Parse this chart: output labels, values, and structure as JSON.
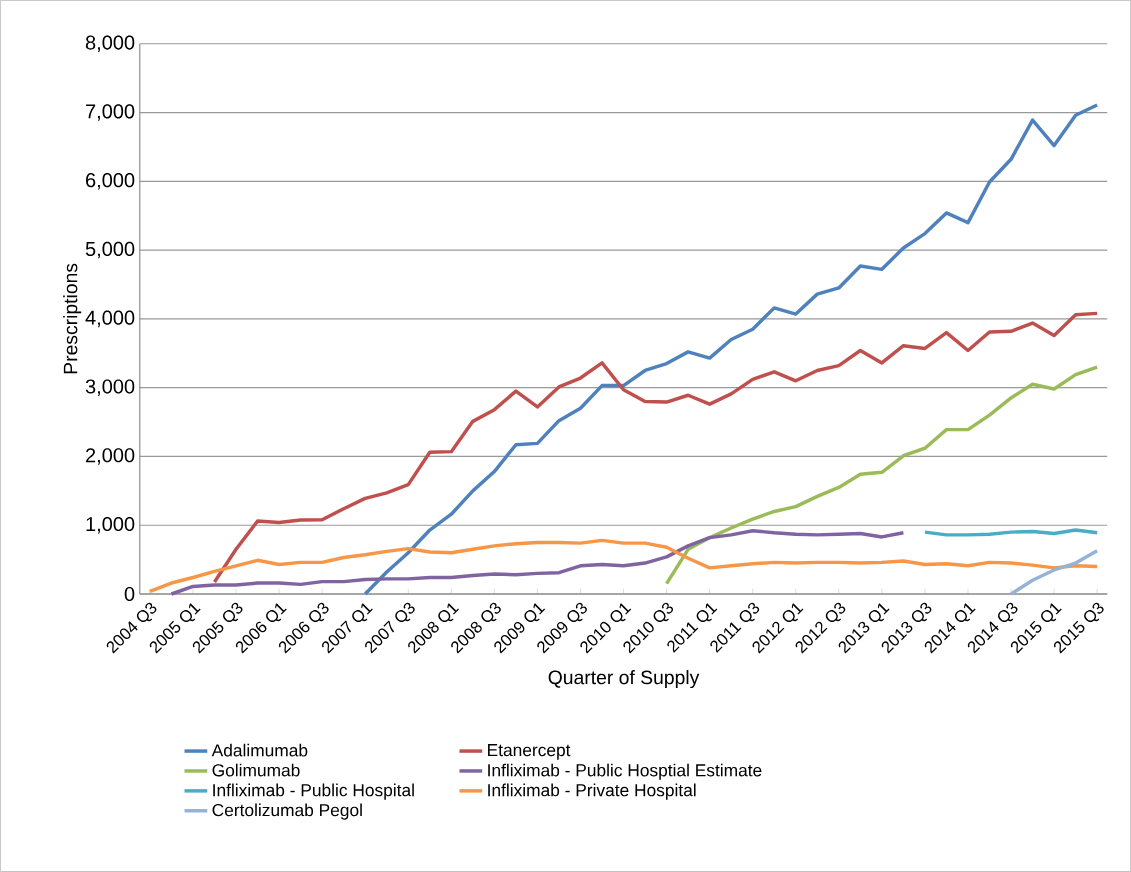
{
  "chart_data": {
    "type": "line",
    "xlabel": "Quarter of Supply",
    "ylabel": "Prescriptions",
    "categories": [
      "2004 Q3",
      null,
      "2005 Q1",
      null,
      "2005 Q3",
      null,
      "2006 Q1",
      null,
      "2006 Q3",
      null,
      "2007 Q1",
      null,
      "2007 Q3",
      null,
      "2008 Q1",
      null,
      "2008 Q3",
      null,
      "2009 Q1",
      null,
      "2009 Q3",
      null,
      "2010 Q1",
      null,
      "2010 Q3",
      null,
      "2011 Q1",
      null,
      "2011 Q3",
      null,
      "2012 Q1",
      null,
      "2012 Q3",
      null,
      "2013 Q1",
      null,
      "2013 Q3",
      null,
      "2014 Q1",
      null,
      "2014 Q3",
      null,
      "2015 Q1",
      null,
      "2015 Q3"
    ],
    "series": [
      {
        "name": "Adalimumab",
        "color": "#4f81bd",
        "values": [
          null,
          null,
          null,
          null,
          null,
          null,
          null,
          null,
          null,
          null,
          0,
          320,
          600,
          930,
          1160,
          1500,
          1780,
          2170,
          2190,
          2520,
          2700,
          3030,
          3030,
          3250,
          3350,
          3520,
          3430,
          3700,
          3850,
          4160,
          4070,
          4360,
          4450,
          4770,
          4720,
          5030,
          5240,
          5540,
          5400,
          5990,
          6320,
          6890,
          6520,
          6960,
          7110
        ]
      },
      {
        "name": "Etanercept",
        "color": "#c0504d",
        "values": [
          null,
          null,
          null,
          175,
          650,
          1060,
          1040,
          1075,
          1080,
          1240,
          1390,
          1470,
          1590,
          2060,
          2070,
          2510,
          2680,
          2950,
          2720,
          3010,
          3140,
          3360,
          2970,
          2800,
          2790,
          2890,
          2760,
          2910,
          3120,
          3230,
          3100,
          3250,
          3320,
          3540,
          3360,
          3610,
          3570,
          3800,
          3540,
          3810,
          3820,
          3940,
          3760,
          4060,
          4080
        ]
      },
      {
        "name": "Golimumab",
        "color": "#9bbb59",
        "values": [
          null,
          null,
          null,
          null,
          null,
          null,
          null,
          null,
          null,
          null,
          null,
          null,
          null,
          null,
          null,
          null,
          null,
          null,
          null,
          null,
          null,
          null,
          null,
          null,
          150,
          650,
          820,
          960,
          1090,
          1200,
          1270,
          1420,
          1550,
          1740,
          1770,
          2010,
          2120,
          2390,
          2390,
          2600,
          2850,
          3050,
          2980,
          3190,
          3300
        ]
      },
      {
        "name": "Infliximab - Public Hosptial Estimate",
        "color": "#8064a2",
        "values": [
          null,
          0,
          110,
          130,
          130,
          160,
          160,
          140,
          180,
          180,
          210,
          220,
          220,
          240,
          240,
          270,
          290,
          280,
          300,
          310,
          410,
          430,
          410,
          450,
          540,
          700,
          820,
          860,
          920,
          890,
          870,
          860,
          870,
          880,
          830,
          890,
          null,
          null,
          null,
          null,
          null,
          null,
          null,
          null,
          null
        ]
      },
      {
        "name": "Infliximab - Public Hospital",
        "color": "#4bacc6",
        "values": [
          null,
          null,
          null,
          null,
          null,
          null,
          null,
          null,
          null,
          null,
          null,
          null,
          null,
          null,
          null,
          null,
          null,
          null,
          null,
          null,
          null,
          null,
          null,
          null,
          null,
          null,
          null,
          null,
          null,
          null,
          null,
          null,
          null,
          null,
          null,
          null,
          900,
          860,
          860,
          870,
          900,
          910,
          880,
          930,
          890
        ]
      },
      {
        "name": "Infliximab - Private Hospital",
        "color": "#f79646",
        "values": [
          40,
          160,
          240,
          330,
          410,
          490,
          430,
          460,
          460,
          530,
          570,
          620,
          660,
          610,
          600,
          650,
          700,
          730,
          750,
          750,
          740,
          780,
          740,
          740,
          680,
          520,
          380,
          410,
          440,
          460,
          450,
          460,
          460,
          450,
          460,
          480,
          430,
          440,
          410,
          460,
          450,
          420,
          380,
          410,
          400
        ]
      },
      {
        "name": "Certolizumab Pegol",
        "color": "#95b3d7",
        "values": [
          null,
          null,
          null,
          null,
          null,
          null,
          null,
          null,
          null,
          null,
          null,
          null,
          null,
          null,
          null,
          null,
          null,
          null,
          null,
          null,
          null,
          null,
          null,
          null,
          null,
          null,
          null,
          null,
          null,
          null,
          null,
          null,
          null,
          null,
          null,
          null,
          null,
          null,
          null,
          null,
          0,
          200,
          350,
          450,
          630
        ]
      }
    ],
    "ylim": [
      0,
      8000
    ],
    "yticks": [
      0,
      {
        "value": 1000,
        "label": "1,000"
      },
      {
        "value": 2000,
        "label": "2,000"
      },
      {
        "value": 3000,
        "label": "3,000"
      },
      {
        "value": 4000,
        "label": "4,000"
      },
      {
        "value": 5000,
        "label": "5,000"
      },
      {
        "value": 6000,
        "label": "6,000"
      },
      {
        "value": 7000,
        "label": "7,000"
      },
      {
        "value": 8000,
        "label": "8,000"
      }
    ],
    "grid": "y",
    "legend": "bottom",
    "marker": "none",
    "line_style": "solid"
  }
}
